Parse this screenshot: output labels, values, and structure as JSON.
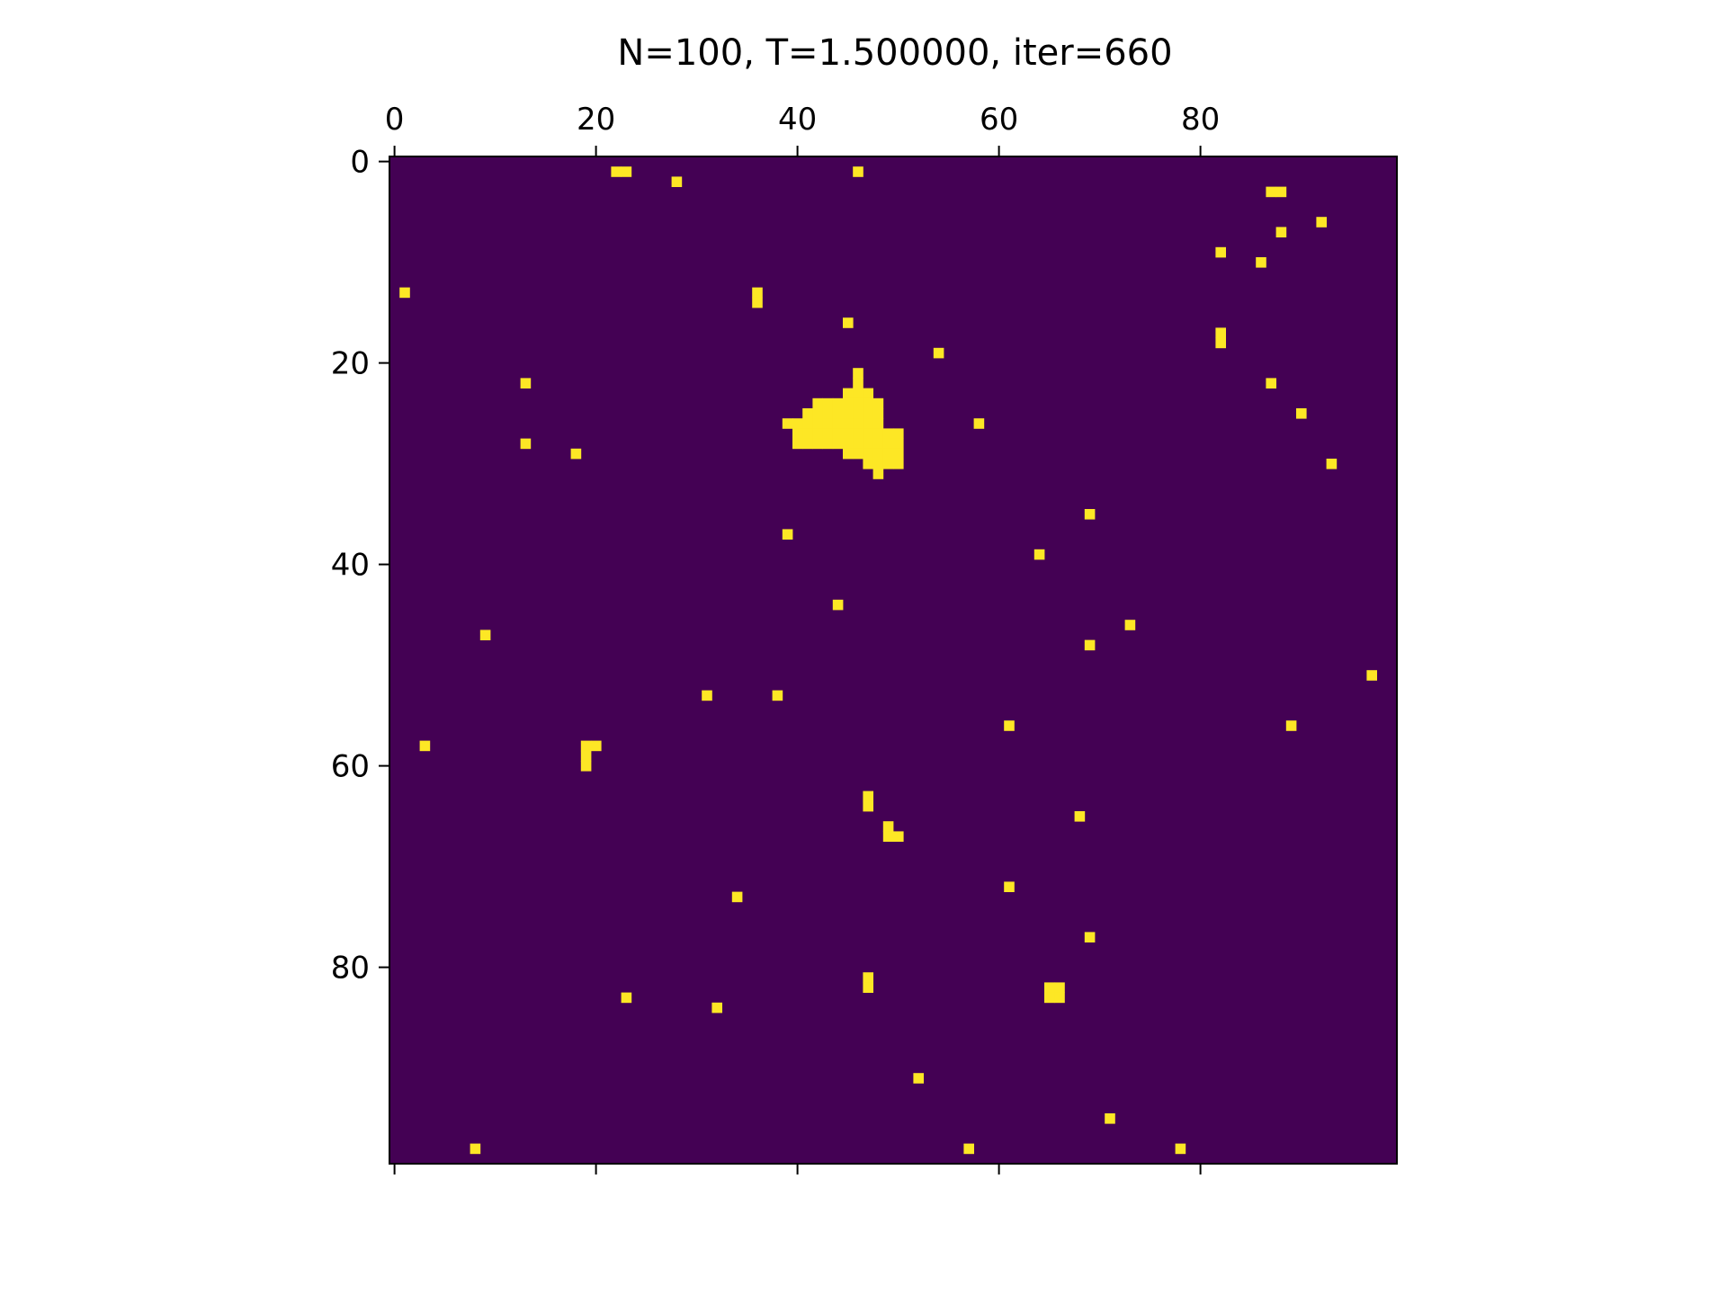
{
  "chart_data": {
    "type": "heatmap",
    "title": "N=100, T=1.500000, iter=660",
    "grid_size": [
      100,
      100
    ],
    "xlim": [
      -0.5,
      99.5
    ],
    "ylim": [
      99.5,
      -0.5
    ],
    "x_axis_position": "top",
    "y_axis_inverted": true,
    "xticks": [
      0,
      20,
      40,
      60,
      80
    ],
    "yticks": [
      0,
      20,
      40,
      60,
      80
    ],
    "grid": false,
    "legend": "none",
    "colors": {
      "background_state": "#440154",
      "active_state": "#fde725",
      "axes": "#000000"
    },
    "active_cells": [
      [
        22,
        1
      ],
      [
        23,
        1
      ],
      [
        46,
        1
      ],
      [
        28,
        2
      ],
      [
        87,
        3
      ],
      [
        88,
        3
      ],
      [
        92,
        6
      ],
      [
        88,
        7
      ],
      [
        82,
        9
      ],
      [
        86,
        10
      ],
      [
        1,
        13
      ],
      [
        36,
        13
      ],
      [
        36,
        14
      ],
      [
        45,
        16
      ],
      [
        82,
        17
      ],
      [
        82,
        18
      ],
      [
        54,
        19
      ],
      [
        46,
        21
      ],
      [
        46,
        22
      ],
      [
        13,
        22
      ],
      [
        87,
        22
      ],
      [
        45,
        23
      ],
      [
        46,
        23
      ],
      [
        47,
        23
      ],
      [
        42,
        24
      ],
      [
        43,
        24
      ],
      [
        44,
        24
      ],
      [
        45,
        24
      ],
      [
        46,
        24
      ],
      [
        47,
        24
      ],
      [
        48,
        24
      ],
      [
        41,
        25
      ],
      [
        42,
        25
      ],
      [
        43,
        25
      ],
      [
        44,
        25
      ],
      [
        45,
        25
      ],
      [
        46,
        25
      ],
      [
        47,
        25
      ],
      [
        48,
        25
      ],
      [
        90,
        25
      ],
      [
        39,
        26
      ],
      [
        40,
        26
      ],
      [
        41,
        26
      ],
      [
        42,
        26
      ],
      [
        43,
        26
      ],
      [
        44,
        26
      ],
      [
        45,
        26
      ],
      [
        46,
        26
      ],
      [
        47,
        26
      ],
      [
        48,
        26
      ],
      [
        58,
        26
      ],
      [
        40,
        27
      ],
      [
        41,
        27
      ],
      [
        42,
        27
      ],
      [
        43,
        27
      ],
      [
        44,
        27
      ],
      [
        45,
        27
      ],
      [
        46,
        27
      ],
      [
        47,
        27
      ],
      [
        48,
        27
      ],
      [
        49,
        27
      ],
      [
        50,
        27
      ],
      [
        40,
        28
      ],
      [
        41,
        28
      ],
      [
        42,
        28
      ],
      [
        43,
        28
      ],
      [
        44,
        28
      ],
      [
        45,
        28
      ],
      [
        46,
        28
      ],
      [
        47,
        28
      ],
      [
        48,
        28
      ],
      [
        49,
        28
      ],
      [
        50,
        28
      ],
      [
        13,
        28
      ],
      [
        45,
        29
      ],
      [
        46,
        29
      ],
      [
        47,
        29
      ],
      [
        48,
        29
      ],
      [
        49,
        29
      ],
      [
        50,
        29
      ],
      [
        18,
        29
      ],
      [
        47,
        30
      ],
      [
        48,
        30
      ],
      [
        49,
        30
      ],
      [
        50,
        30
      ],
      [
        93,
        30
      ],
      [
        48,
        31
      ],
      [
        69,
        35
      ],
      [
        39,
        37
      ],
      [
        64,
        39
      ],
      [
        44,
        44
      ],
      [
        73,
        46
      ],
      [
        9,
        47
      ],
      [
        69,
        48
      ],
      [
        97,
        51
      ],
      [
        31,
        53
      ],
      [
        38,
        53
      ],
      [
        61,
        56
      ],
      [
        89,
        56
      ],
      [
        3,
        58
      ],
      [
        19,
        58
      ],
      [
        20,
        58
      ],
      [
        19,
        59
      ],
      [
        19,
        60
      ],
      [
        47,
        63
      ],
      [
        47,
        64
      ],
      [
        68,
        65
      ],
      [
        49,
        66
      ],
      [
        49,
        67
      ],
      [
        50,
        67
      ],
      [
        34,
        73
      ],
      [
        61,
        72
      ],
      [
        69,
        77
      ],
      [
        47,
        81
      ],
      [
        47,
        82
      ],
      [
        65,
        82
      ],
      [
        66,
        82
      ],
      [
        65,
        83
      ],
      [
        66,
        83
      ],
      [
        23,
        83
      ],
      [
        32,
        84
      ],
      [
        52,
        91
      ],
      [
        71,
        95
      ],
      [
        8,
        98
      ],
      [
        57,
        98
      ],
      [
        78,
        98
      ]
    ]
  }
}
